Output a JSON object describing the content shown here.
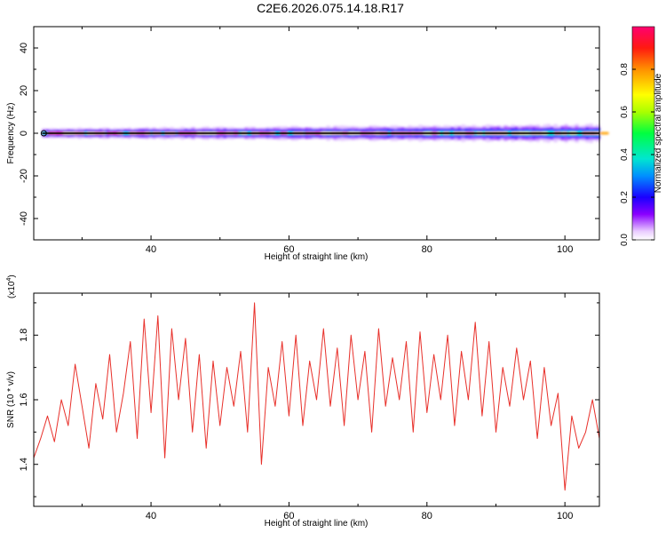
{
  "title": "C2E6.2026.075.14.18.R17",
  "chart_data": [
    {
      "type": "heatmap",
      "xlabel": "Height of straight line (km)",
      "ylabel": "Frequency (Hz)",
      "xlim": [
        23,
        105
      ],
      "ylim": [
        -50,
        50
      ],
      "xticks": [
        40,
        60,
        80,
        100
      ],
      "yticks": [
        -40,
        -20,
        0,
        20,
        40
      ],
      "signal_band_center_hz": 0,
      "signal_band_halfwidth_hz": [
        0.8,
        4
      ],
      "colorbar": {
        "label": "Normalized spectral amplitude",
        "range": [
          0.0,
          1.0
        ],
        "ticks": [
          0.0,
          0.2,
          0.4,
          0.6,
          0.8
        ],
        "colormap": "rainbow (magenta-red-yellow-green-cyan-blue-violet)"
      }
    },
    {
      "type": "line",
      "xlabel": "Height of straight line (km)",
      "ylabel": "SNR (10 * v/v)",
      "exponent_label": "(x10",
      "exponent_power": "4",
      "exponent_close": ")",
      "xlim": [
        23,
        105
      ],
      "ylim": [
        1.27,
        1.93
      ],
      "xticks": [
        40,
        60,
        80,
        100
      ],
      "yticks": [
        1.4,
        1.6,
        1.8
      ],
      "color": "#e8302a",
      "x": [
        23,
        24,
        25,
        26,
        27,
        28,
        29,
        30,
        31,
        32,
        33,
        34,
        35,
        36,
        37,
        38,
        39,
        40,
        41,
        42,
        43,
        44,
        45,
        46,
        47,
        48,
        49,
        50,
        51,
        52,
        53,
        54,
        55,
        56,
        57,
        58,
        59,
        60,
        61,
        62,
        63,
        64,
        65,
        66,
        67,
        68,
        69,
        70,
        71,
        72,
        73,
        74,
        75,
        76,
        77,
        78,
        79,
        80,
        81,
        82,
        83,
        84,
        85,
        86,
        87,
        88,
        89,
        90,
        91,
        92,
        93,
        94,
        95,
        96,
        97,
        98,
        99,
        100,
        101,
        102,
        103,
        104,
        105
      ],
      "y": [
        1.42,
        1.48,
        1.55,
        1.47,
        1.6,
        1.52,
        1.71,
        1.58,
        1.45,
        1.65,
        1.54,
        1.74,
        1.5,
        1.62,
        1.78,
        1.48,
        1.85,
        1.56,
        1.86,
        1.42,
        1.82,
        1.6,
        1.79,
        1.5,
        1.74,
        1.45,
        1.72,
        1.52,
        1.7,
        1.58,
        1.75,
        1.5,
        1.9,
        1.4,
        1.7,
        1.58,
        1.78,
        1.55,
        1.8,
        1.52,
        1.72,
        1.6,
        1.82,
        1.58,
        1.76,
        1.52,
        1.8,
        1.6,
        1.75,
        1.5,
        1.82,
        1.58,
        1.73,
        1.6,
        1.78,
        1.5,
        1.81,
        1.56,
        1.74,
        1.6,
        1.8,
        1.52,
        1.75,
        1.6,
        1.84,
        1.55,
        1.78,
        1.5,
        1.7,
        1.58,
        1.76,
        1.6,
        1.72,
        1.48,
        1.7,
        1.52,
        1.62,
        1.32,
        1.55,
        1.45,
        1.5,
        1.6,
        1.48
      ]
    }
  ]
}
